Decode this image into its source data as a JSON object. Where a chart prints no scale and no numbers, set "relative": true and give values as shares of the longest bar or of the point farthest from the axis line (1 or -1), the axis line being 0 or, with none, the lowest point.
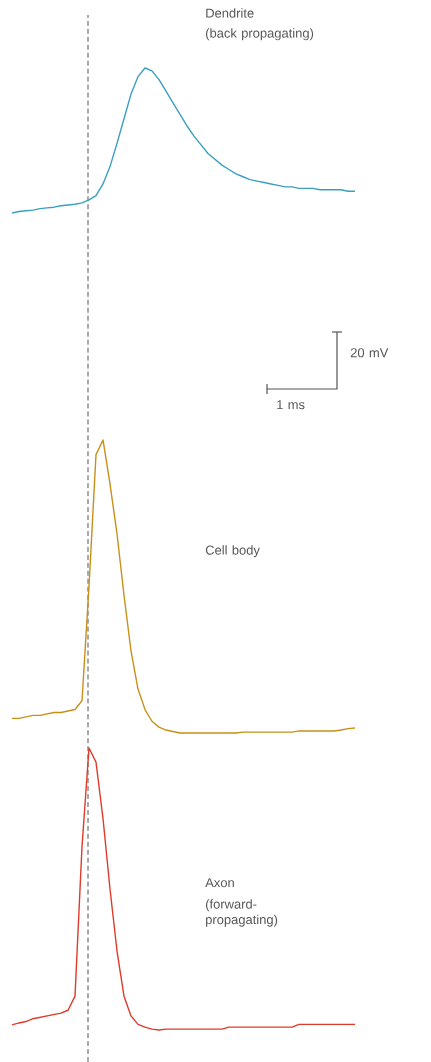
{
  "chart_data": [
    {
      "type": "line",
      "relative": true,
      "categories": [
        null,
        null,
        null,
        null,
        null,
        null,
        null,
        null,
        null,
        null,
        null,
        null,
        null,
        null,
        null,
        null,
        null,
        null,
        null,
        null,
        null,
        null,
        null,
        null,
        null,
        null,
        null,
        null,
        null,
        null,
        null,
        null,
        null,
        null,
        null,
        null,
        null,
        null,
        null,
        null,
        null,
        null,
        null,
        null,
        null,
        null,
        null,
        null,
        null,
        null
      ],
      "series": [
        {
          "name": "Dendrite",
          "color": "#3a9fc0",
          "values": [
            0,
            0.01,
            0.015,
            0.02,
            0.03,
            0.035,
            0.04,
            0.05,
            0.055,
            0.06,
            0.07,
            0.09,
            0.12,
            0.2,
            0.32,
            0.48,
            0.65,
            0.82,
            0.94,
            1.0,
            0.98,
            0.92,
            0.84,
            0.76,
            0.68,
            0.6,
            0.53,
            0.47,
            0.41,
            0.37,
            0.33,
            0.3,
            0.27,
            0.25,
            0.23,
            0.22,
            0.21,
            0.2,
            0.19,
            0.18,
            0.18,
            0.17,
            0.17,
            0.17,
            0.16,
            0.16,
            0.16,
            0.16,
            0.15,
            0.15
          ]
        }
      ],
      "annotations": [
        "(back propagating)"
      ]
    },
    {
      "type": "line",
      "relative": true,
      "categories": [
        null,
        null,
        null,
        null,
        null,
        null,
        null,
        null,
        null,
        null,
        null,
        null,
        null,
        null,
        null,
        null,
        null,
        null,
        null,
        null,
        null,
        null,
        null,
        null,
        null,
        null,
        null,
        null,
        null,
        null,
        null,
        null,
        null,
        null,
        null,
        null,
        null,
        null,
        null,
        null,
        null,
        null,
        null,
        null,
        null,
        null,
        null,
        null,
        null,
        null
      ],
      "series": [
        {
          "name": "Cell body",
          "color": "#c8901a",
          "values": [
            0.05,
            0.05,
            0.055,
            0.06,
            0.06,
            0.065,
            0.07,
            0.07,
            0.075,
            0.08,
            0.11,
            0.5,
            0.95,
            1.0,
            0.85,
            0.68,
            0.47,
            0.28,
            0.15,
            0.08,
            0.04,
            0.02,
            0.01,
            0.005,
            0,
            0,
            0,
            0,
            0,
            0,
            0,
            0,
            0,
            0.003,
            0.003,
            0.003,
            0.003,
            0.003,
            0.003,
            0.003,
            0.003,
            0.007,
            0.007,
            0.007,
            0.007,
            0.007,
            0.007,
            0.01,
            0.015,
            0.017
          ]
        }
      ],
      "annotations": [
        "20 mV",
        "1 ms"
      ]
    },
    {
      "type": "line",
      "relative": true,
      "categories": [
        null,
        null,
        null,
        null,
        null,
        null,
        null,
        null,
        null,
        null,
        null,
        null,
        null,
        null,
        null,
        null,
        null,
        null,
        null,
        null,
        null,
        null,
        null,
        null,
        null,
        null,
        null,
        null,
        null,
        null,
        null,
        null,
        null,
        null,
        null,
        null,
        null,
        null,
        null,
        null,
        null,
        null,
        null,
        null,
        null,
        null,
        null,
        null,
        null,
        null
      ],
      "series": [
        {
          "name": "Axon",
          "color": "#e03a2a",
          "values": [
            0.018,
            0.025,
            0.03,
            0.04,
            0.045,
            0.05,
            0.055,
            0.06,
            0.07,
            0.12,
            0.65,
            1.0,
            0.95,
            0.75,
            0.5,
            0.28,
            0.12,
            0.05,
            0.02,
            0.01,
            0.003,
            0,
            0.003,
            0.003,
            0.003,
            0.003,
            0.003,
            0.003,
            0.003,
            0.003,
            0.003,
            0.01,
            0.01,
            0.01,
            0.01,
            0.01,
            0.01,
            0.01,
            0.01,
            0.01,
            0.01,
            0.02,
            0.02,
            0.02,
            0.02,
            0.02,
            0.02,
            0.02,
            0.02,
            0.02
          ]
        }
      ],
      "annotations": [
        "(forward-propagating)"
      ]
    }
  ]
}
